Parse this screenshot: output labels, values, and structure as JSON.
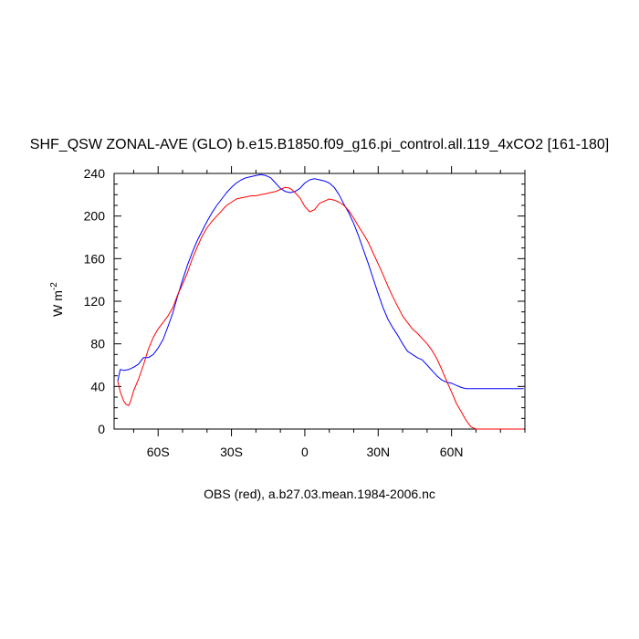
{
  "chart_data": {
    "type": "line",
    "title": "SHF_QSW ZONAL-AVE (GLO) b.e15.B1850.f09_g16.pi_control.all.119_4xCO2 [161-180]",
    "ylabel_main": "W m",
    "ylabel_sup": "-2",
    "footer": "OBS (red), a.b27.03.mean.1984-2006.nc",
    "xlim": [
      -78,
      90
    ],
    "ylim": [
      0,
      240
    ],
    "xticks": [
      {
        "value": -60,
        "label": "60S"
      },
      {
        "value": -30,
        "label": "30S"
      },
      {
        "value": 0,
        "label": "0"
      },
      {
        "value": 30,
        "label": "30N"
      },
      {
        "value": 60,
        "label": "60N"
      }
    ],
    "yticks": [
      {
        "value": 0,
        "label": "0"
      },
      {
        "value": 40,
        "label": "40"
      },
      {
        "value": 80,
        "label": "80"
      },
      {
        "value": 120,
        "label": "120"
      },
      {
        "value": 160,
        "label": "160"
      },
      {
        "value": 200,
        "label": "200"
      },
      {
        "value": 240,
        "label": "240"
      }
    ],
    "series": [
      {
        "color": "#0000ff",
        "x": [
          -76.5,
          -75.5,
          -74,
          -72,
          -70,
          -68,
          -66,
          -64,
          -62,
          -60,
          -58,
          -56,
          -54,
          -52,
          -50,
          -48,
          -46,
          -44,
          -42,
          -40,
          -38,
          -36,
          -34,
          -32,
          -30,
          -28,
          -26,
          -24,
          -22,
          -20,
          -18,
          -16,
          -14,
          -12,
          -10,
          -8,
          -6,
          -4,
          -2,
          0,
          2,
          4,
          6,
          8,
          10,
          12,
          14,
          16,
          18,
          20,
          22,
          24,
          26,
          28,
          30,
          32,
          34,
          36,
          38,
          40,
          42,
          44,
          46,
          48,
          50,
          52,
          54,
          56,
          58,
          60,
          62,
          64,
          66,
          68,
          70,
          72,
          74,
          76,
          78,
          80,
          82,
          84,
          86,
          88,
          89.5
        ],
        "values": [
          45,
          56,
          55,
          56,
          58,
          61,
          67,
          67,
          70,
          76,
          84,
          96,
          109,
          125,
          140,
          154,
          166,
          177,
          186,
          195,
          203,
          210,
          216,
          222,
          227,
          231,
          234,
          236,
          237,
          238,
          239,
          238,
          236,
          231,
          226,
          223,
          222,
          223,
          226,
          231,
          234,
          235,
          234,
          233,
          231,
          227,
          220,
          211,
          203,
          193,
          181,
          168,
          155,
          141,
          127,
          114,
          103,
          95,
          88,
          80,
          73,
          70,
          67,
          65,
          60,
          55,
          50,
          46,
          44,
          43,
          41,
          39,
          38,
          38,
          38,
          38,
          38,
          38,
          38,
          38,
          38,
          38,
          38,
          38,
          38
        ]
      },
      {
        "color": "#ff0000",
        "x": [
          -76.5,
          -75.5,
          -74,
          -73,
          -72,
          -71,
          -70,
          -68,
          -66,
          -64,
          -62,
          -60,
          -58,
          -56,
          -54,
          -52,
          -50,
          -48,
          -46,
          -44,
          -42,
          -40,
          -38,
          -36,
          -34,
          -32,
          -30,
          -28,
          -26,
          -24,
          -22,
          -20,
          -18,
          -16,
          -14,
          -12,
          -10,
          -8,
          -6,
          -4,
          -2,
          0,
          2,
          4,
          6,
          8,
          10,
          12,
          14,
          16,
          18,
          20,
          22,
          24,
          26,
          28,
          30,
          32,
          34,
          36,
          38,
          40,
          42,
          44,
          46,
          48,
          50,
          52,
          54,
          56,
          58,
          60,
          62,
          64,
          66,
          68,
          70,
          72,
          74,
          76,
          78,
          80,
          82,
          84,
          86,
          88,
          89.5
        ],
        "values": [
          45,
          35,
          26,
          23,
          22,
          28,
          36,
          47,
          60,
          75,
          86,
          94,
          100,
          106,
          114,
          126,
          136,
          147,
          160,
          171,
          181,
          189,
          195,
          200,
          205,
          210,
          213,
          216,
          217,
          218,
          219,
          219,
          220,
          221,
          222,
          223,
          225,
          227,
          226,
          222,
          217,
          209,
          204,
          206,
          212,
          214,
          216,
          215,
          213,
          210,
          205,
          198,
          190,
          183,
          175,
          165,
          155,
          145,
          134,
          124,
          115,
          106,
          100,
          94,
          90,
          85,
          80,
          74,
          66,
          56,
          45,
          35,
          24,
          16,
          8,
          2,
          0,
          0,
          0,
          0,
          0,
          0,
          0,
          0,
          0,
          0,
          0
        ]
      }
    ]
  }
}
